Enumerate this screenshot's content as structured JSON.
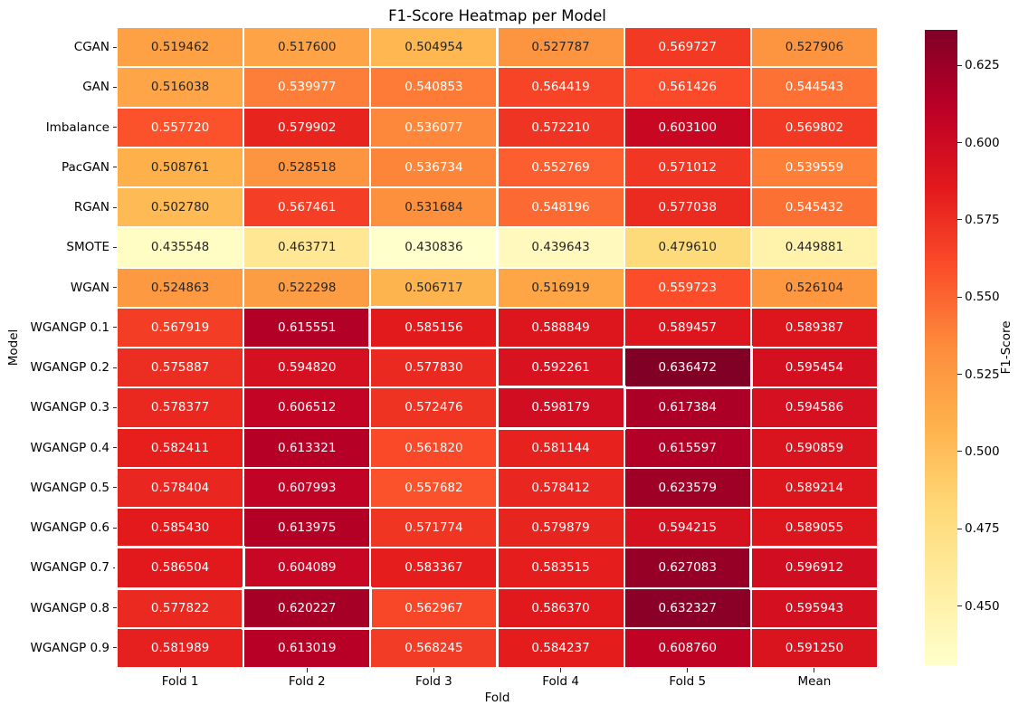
{
  "colors": {
    "background": "#ffffff",
    "grid_line": "#ffffff",
    "highlight_border": "#ffffff",
    "dark_cell_text": "#262626",
    "light_cell_text": "#ffffff",
    "tick_mark": "#262626",
    "colormap_min": "#ffffcc",
    "colormap_max": "#800026"
  },
  "chart_data": {
    "type": "heatmap",
    "title": "F1-Score Heatmap per Model",
    "xlabel": "Fold",
    "ylabel": "Model",
    "colorbar_label": "F1-Score",
    "legend_position": "colorbar-right",
    "grid": false,
    "columns": [
      "Fold 1",
      "Fold 2",
      "Fold 3",
      "Fold 4",
      "Fold 5",
      "Mean"
    ],
    "rows": [
      "CGAN",
      "GAN",
      "Imbalance",
      "PacGAN",
      "RGAN",
      "SMOTE",
      "WGAN",
      "WGANGP 0.1",
      "WGANGP 0.2",
      "WGANGP 0.3",
      "WGANGP 0.4",
      "WGANGP 0.5",
      "WGANGP 0.6",
      "WGANGP 0.7",
      "WGANGP 0.8",
      "WGANGP 0.9"
    ],
    "values": [
      [
        0.519462,
        0.5176,
        0.504954,
        0.527787,
        0.569727,
        0.527906
      ],
      [
        0.516038,
        0.539977,
        0.540853,
        0.564419,
        0.561426,
        0.544543
      ],
      [
        0.55772,
        0.579902,
        0.536077,
        0.57221,
        0.6031,
        0.569802
      ],
      [
        0.508761,
        0.528518,
        0.536734,
        0.552769,
        0.571012,
        0.539559
      ],
      [
        0.50278,
        0.567461,
        0.531684,
        0.548196,
        0.577038,
        0.545432
      ],
      [
        0.435548,
        0.463771,
        0.430836,
        0.439643,
        0.47961,
        0.449881
      ],
      [
        0.524863,
        0.522298,
        0.506717,
        0.516919,
        0.559723,
        0.526104
      ],
      [
        0.567919,
        0.615551,
        0.585156,
        0.588849,
        0.589457,
        0.589387
      ],
      [
        0.575887,
        0.59482,
        0.57783,
        0.592261,
        0.636472,
        0.595454
      ],
      [
        0.578377,
        0.606512,
        0.572476,
        0.598179,
        0.617384,
        0.594586
      ],
      [
        0.582411,
        0.613321,
        0.56182,
        0.581144,
        0.615597,
        0.590859
      ],
      [
        0.578404,
        0.607993,
        0.557682,
        0.578412,
        0.623579,
        0.589214
      ],
      [
        0.58543,
        0.613975,
        0.571774,
        0.579879,
        0.594215,
        0.589055
      ],
      [
        0.586504,
        0.604089,
        0.583367,
        0.583515,
        0.627083,
        0.596912
      ],
      [
        0.577822,
        0.620227,
        0.562967,
        0.58637,
        0.632327,
        0.595943
      ],
      [
        0.581989,
        0.613019,
        0.568245,
        0.584237,
        0.60876,
        0.59125
      ]
    ],
    "value_decimals": 6,
    "vmin": 0.430836,
    "vmax": 0.636472,
    "colormap": {
      "name": "YlOrRd",
      "stops": [
        {
          "pos": 0.0,
          "color": "#ffffcc"
        },
        {
          "pos": 0.125,
          "color": "#ffeda0"
        },
        {
          "pos": 0.25,
          "color": "#fed976"
        },
        {
          "pos": 0.375,
          "color": "#feb24c"
        },
        {
          "pos": 0.5,
          "color": "#fd8d3c"
        },
        {
          "pos": 0.625,
          "color": "#fc4e2a"
        },
        {
          "pos": 0.75,
          "color": "#e31a1c"
        },
        {
          "pos": 0.875,
          "color": "#bd0026"
        },
        {
          "pos": 1.0,
          "color": "#800026"
        }
      ]
    },
    "colorbar_ticks": [
      0.625,
      0.6,
      0.575,
      0.55,
      0.525,
      0.5,
      0.475,
      0.45
    ],
    "colorbar_tick_decimals": 3,
    "highlighted_cells": [
      {
        "row": 7,
        "col": 2,
        "row_label": "WGANGP 0.1",
        "col_label": "Fold 3",
        "value": 0.585156
      },
      {
        "row": 8,
        "col": 4,
        "row_label": "WGANGP 0.2",
        "col_label": "Fold 5",
        "value": 0.636472
      },
      {
        "row": 9,
        "col": 3,
        "row_label": "WGANGP 0.3",
        "col_label": "Fold 4",
        "value": 0.598179
      },
      {
        "row": 13,
        "col": 0,
        "row_label": "WGANGP 0.7",
        "col_label": "Fold 1",
        "value": 0.586504
      },
      {
        "row": 13,
        "col": 5,
        "row_label": "WGANGP 0.7",
        "col_label": "Mean",
        "value": 0.596912
      },
      {
        "row": 14,
        "col": 1,
        "row_label": "WGANGP 0.8",
        "col_label": "Fold 2",
        "value": 0.620227
      }
    ]
  }
}
